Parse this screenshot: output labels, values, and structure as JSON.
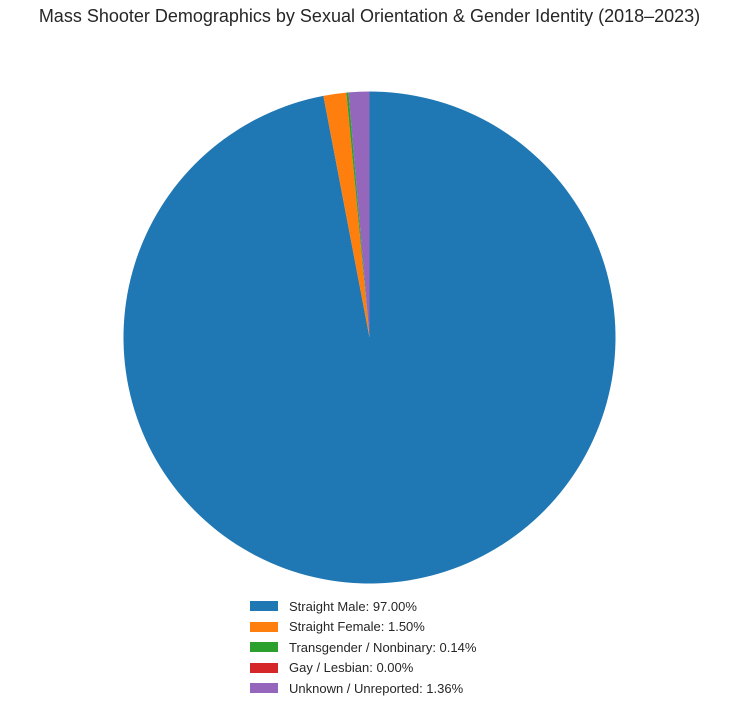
{
  "chart_data": {
    "type": "pie",
    "title": "Mass Shooter Demographics by Sexual Orientation & Gender Identity (2018–2023)",
    "start_angle": "top, clockwise",
    "legend_placement": "bottom-center",
    "slices": [
      {
        "label": "Straight Male",
        "value": 97.0,
        "display": "Straight Male: 97.00%",
        "color": "#1f77b4"
      },
      {
        "label": "Straight Female",
        "value": 1.5,
        "display": "Straight Female: 1.50%",
        "color": "#ff7f0e"
      },
      {
        "label": "Transgender / Nonbinary",
        "value": 0.14,
        "display": "Transgender / Nonbinary: 0.14%",
        "color": "#2ca02c"
      },
      {
        "label": "Gay / Lesbian",
        "value": 0.0,
        "display": "Gay / Lesbian: 0.00%",
        "color": "#d62728"
      },
      {
        "label": "Unknown / Unreported",
        "value": 1.36,
        "display": "Unknown / Unreported: 1.36%",
        "color": "#9467bd"
      }
    ]
  }
}
